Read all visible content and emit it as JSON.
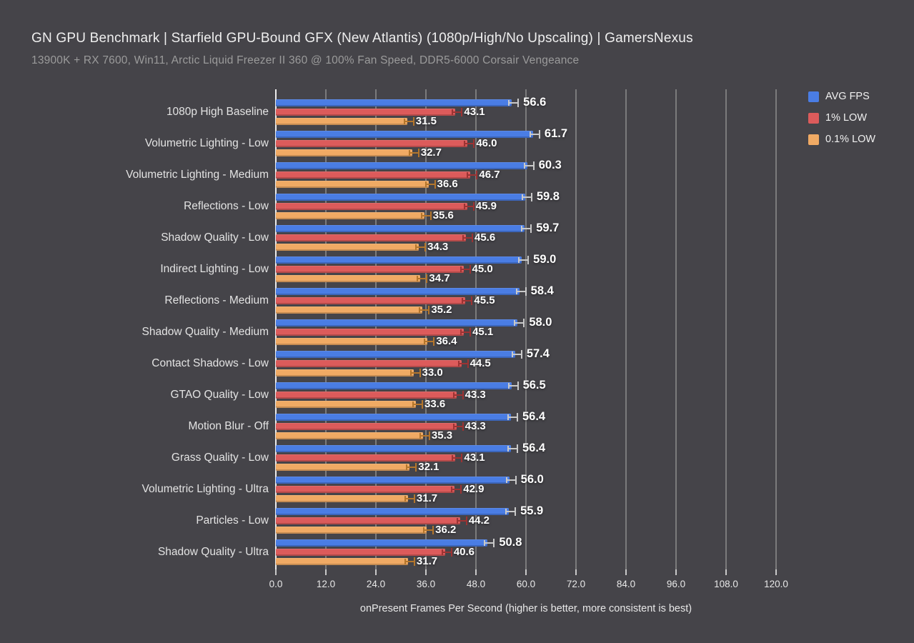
{
  "header": {
    "title": "GN GPU Benchmark | Starfield GPU-Bound GFX (New Atlantis) (1080p/High/No Upscaling) | GamersNexus",
    "subtitle": "13900K + RX 7600, Win11, Arctic Liquid Freezer II 360 @ 100% Fan Speed, DDR5-6000 Corsair Vengeance"
  },
  "colors": {
    "background": "#454449",
    "grid": "#8E8E8E",
    "axis": "#ECECEC",
    "title_text": "#EFEFEF",
    "subtitle_text": "#9B9B9B",
    "value_label": "#FFFFFF",
    "category_label": "#E3E3E3"
  },
  "chart_data": {
    "type": "bar",
    "orientation": "horizontal",
    "title": "GN GPU Benchmark | Starfield GPU-Bound GFX (New Atlantis) (1080p/High/No Upscaling) | GamersNexus",
    "subtitle": "13900K + RX 7600, Win11, Arctic Liquid Freezer II 360 @ 100% Fan Speed, DDR5-6000 Corsair Vengeance",
    "xlabel": "onPresent Frames Per Second (higher is better, more consistent is best)",
    "xlim": [
      0,
      120
    ],
    "xticks": [
      "0.0",
      "12.0",
      "24.0",
      "36.0",
      "48.0",
      "60.0",
      "72.0",
      "84.0",
      "96.0",
      "108.0",
      "120.0"
    ],
    "grid": true,
    "legend_position": "top-right",
    "error_bars": true,
    "categories": [
      "1080p High Baseline",
      "Volumetric Lighting - Low",
      "Volumetric Lighting - Medium",
      "Reflections - Low",
      "Shadow Quality - Low",
      "Indirect Lighting - Low",
      "Reflections - Medium",
      "Shadow Quality - Medium",
      "Contact Shadows - Low",
      "GTAO Quality - Low",
      "Motion Blur - Off",
      "Grass Quality - Low",
      "Volumetric Lighting - Ultra",
      "Particles - Low",
      "Shadow Quality - Ultra"
    ],
    "series": [
      {
        "name": "AVG FPS",
        "color": "#4A7DE4",
        "whisker_color": "#C9C9C9",
        "values": [
          56.6,
          61.7,
          60.3,
          59.8,
          59.7,
          59.0,
          58.4,
          58.0,
          57.4,
          56.5,
          56.4,
          56.4,
          56.0,
          55.9,
          50.8
        ]
      },
      {
        "name": "1% LOW",
        "color": "#DC5B5B",
        "whisker_color": "#9C3333",
        "values": [
          43.1,
          46.0,
          46.7,
          45.9,
          45.6,
          45.0,
          45.5,
          45.1,
          44.5,
          43.3,
          43.3,
          43.1,
          42.9,
          44.2,
          40.6
        ]
      },
      {
        "name": "0.1% LOW",
        "color": "#F0AA64",
        "whisker_color": "#B4762C",
        "values": [
          31.5,
          32.7,
          36.6,
          35.6,
          34.3,
          34.7,
          35.2,
          36.4,
          33.0,
          33.6,
          35.3,
          32.1,
          31.7,
          36.2,
          31.7
        ]
      }
    ]
  }
}
